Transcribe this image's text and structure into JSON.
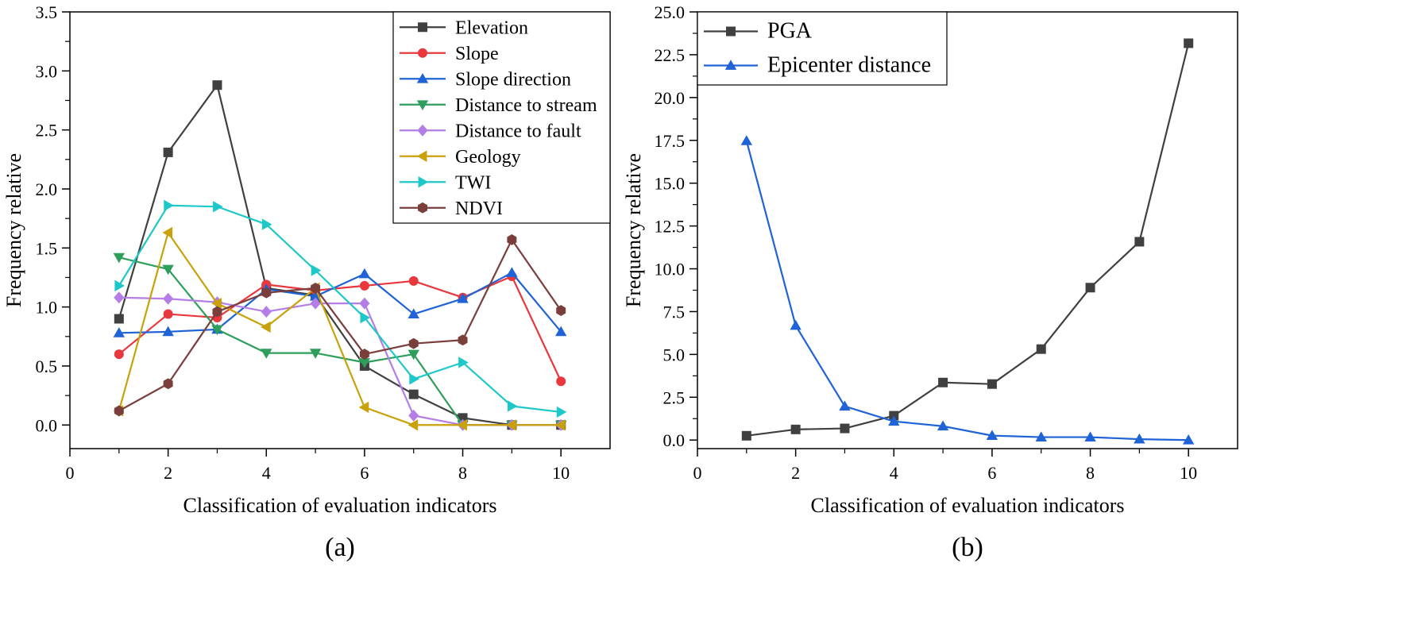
{
  "chart_data": [
    {
      "panel_label": "(a)",
      "type": "line",
      "xlabel": "Classification of evaluation indicators",
      "ylabel": "Frequency relative",
      "xlim": [
        0,
        11
      ],
      "ylim": [
        -0.2,
        3.5
      ],
      "xticks": [
        "0",
        "2",
        "4",
        "6",
        "8",
        "10"
      ],
      "yticks": [
        "0.0",
        "0.5",
        "1.0",
        "1.5",
        "2.0",
        "2.5",
        "3.0",
        "3.5"
      ],
      "legend_position": "top-right",
      "x": [
        1,
        2,
        3,
        4,
        5,
        6,
        7,
        8,
        9,
        10
      ],
      "series": [
        {
          "name": "Elevation",
          "color": "#404040",
          "marker": "square",
          "values": [
            0.9,
            2.31,
            2.88,
            1.16,
            1.1,
            0.5,
            0.26,
            0.06,
            0.0,
            0.0
          ]
        },
        {
          "name": "Slope",
          "color": "#e8383d",
          "marker": "circle",
          "values": [
            0.6,
            0.94,
            0.91,
            1.19,
            1.14,
            1.18,
            1.22,
            1.08,
            1.26,
            0.37
          ]
        },
        {
          "name": "Slope direction",
          "color": "#1f63d6",
          "marker": "triangle-up",
          "values": [
            0.78,
            0.79,
            0.81,
            1.15,
            1.09,
            1.28,
            0.94,
            1.07,
            1.29,
            0.79
          ]
        },
        {
          "name": "Distance to stream",
          "color": "#2e9e5b",
          "marker": "triangle-down",
          "values": [
            1.42,
            1.32,
            0.81,
            0.61,
            0.61,
            0.53,
            0.6,
            0.0,
            0.0,
            0.0
          ]
        },
        {
          "name": "Distance to fault",
          "color": "#b47ee6",
          "marker": "diamond",
          "values": [
            1.08,
            1.07,
            1.04,
            0.96,
            1.03,
            1.03,
            0.08,
            0.0,
            0.0,
            0.0
          ]
        },
        {
          "name": "Geology",
          "color": "#c9a10a",
          "marker": "triangle-left",
          "values": [
            0.12,
            1.63,
            1.03,
            0.83,
            1.16,
            0.15,
            0.0,
            0.0,
            0.0,
            0.0
          ]
        },
        {
          "name": "TWI",
          "color": "#1ec8c8",
          "marker": "triangle-right",
          "values": [
            1.18,
            1.86,
            1.85,
            1.7,
            1.31,
            0.91,
            0.39,
            0.53,
            0.16,
            0.11
          ]
        },
        {
          "name": "NDVI",
          "color": "#7a3e3b",
          "marker": "hexagon",
          "values": [
            0.12,
            0.35,
            0.96,
            1.12,
            1.16,
            0.6,
            0.69,
            0.72,
            1.57,
            0.97
          ]
        }
      ]
    },
    {
      "panel_label": "(b)",
      "type": "line",
      "xlabel": "Classification of evaluation indicators",
      "ylabel": "Frequency relative",
      "xlim": [
        0,
        11
      ],
      "ylim": [
        -0.5,
        25
      ],
      "xticks": [
        "0",
        "2",
        "4",
        "6",
        "8",
        "10"
      ],
      "yticks": [
        "0.0",
        "2.5",
        "5.0",
        "7.5",
        "10.0",
        "12.5",
        "15.0",
        "17.5",
        "20.0",
        "22.5",
        "25.0"
      ],
      "legend_position": "top-left",
      "x": [
        1,
        2,
        3,
        4,
        5,
        6,
        7,
        8,
        9,
        10
      ],
      "series": [
        {
          "name": "PGA",
          "color": "#404040",
          "marker": "square",
          "values": [
            0.25,
            0.62,
            0.68,
            1.42,
            3.36,
            3.27,
            5.31,
            8.9,
            11.58,
            23.17
          ]
        },
        {
          "name": "Epicenter distance",
          "color": "#1f63d6",
          "marker": "triangle-up",
          "values": [
            17.47,
            6.69,
            1.97,
            1.09,
            0.81,
            0.26,
            0.17,
            0.17,
            0.05,
            0.0
          ]
        }
      ]
    }
  ]
}
